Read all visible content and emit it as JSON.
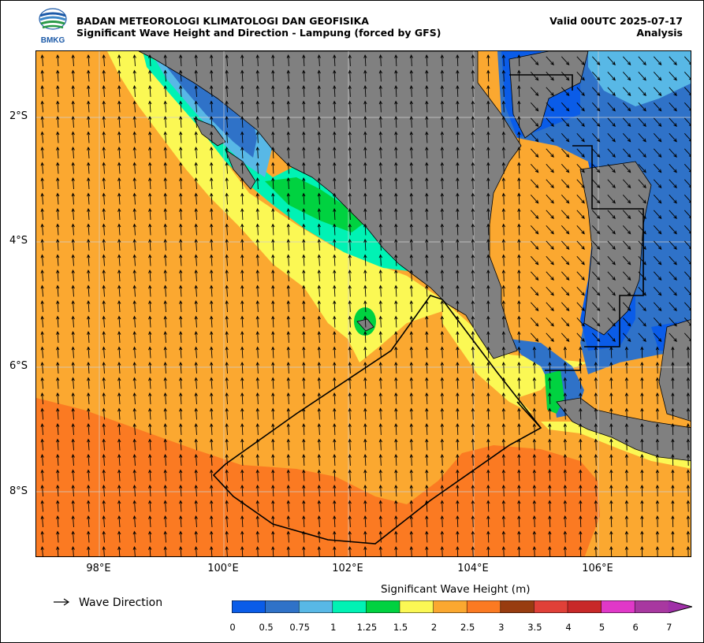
{
  "header": {
    "agency": "BADAN METEOROLOGI KLIMATOLOGI DAN GEOFISIKA",
    "product": "Significant Wave Height and Direction - Lampung (forced by GFS)",
    "valid": "Valid 00UTC 2025-07-17",
    "mode": "Analysis",
    "logo_text": "BMKG"
  },
  "map": {
    "lat_labels": [
      "2°S",
      "4°S",
      "6°S",
      "8°S"
    ],
    "lon_labels": [
      "98°E",
      "100°E",
      "102°E",
      "104°E",
      "106°E"
    ],
    "land_color": "#808080",
    "wave_direction_dominant": "north (southern Indian Ocean swell)"
  },
  "legend": {
    "direction_label": "Wave Direction",
    "colorbar_title": "Significant Wave Height (m)",
    "ticks": [
      "0",
      "0.5",
      "0.75",
      "1",
      "1.25",
      "1.5",
      "2",
      "2.5",
      "3",
      "3.5",
      "4",
      "5",
      "6",
      "7"
    ],
    "colors": [
      "#0a5ce8",
      "#2f72c8",
      "#58b8e6",
      "#00f2b4",
      "#00d240",
      "#fbf854",
      "#fba830",
      "#fb7a22",
      "#983c10",
      "#e04038",
      "#c82828",
      "#e038c8",
      "#a838a0"
    ],
    "extend_color": "#a030a8"
  }
}
